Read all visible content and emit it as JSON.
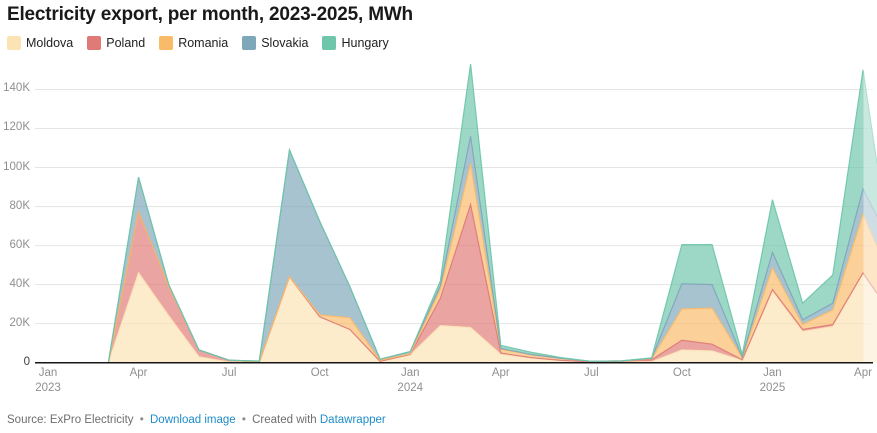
{
  "header": {
    "title": "Electricity export, per month, 2023-2025, MWh"
  },
  "footer": {
    "source_label": "Source:",
    "source": "ExPro Electricity",
    "separator": "•",
    "download_link": "Download image",
    "created_with": "Created with",
    "datawrapper_link": "Datawrapper"
  },
  "chart_data": {
    "type": "area",
    "stacked": true,
    "title": "Electricity export, per month, 2023-2025, MWh",
    "unit": "MWh",
    "values_unit": "thousand MWh",
    "grid": "horizontal",
    "legend_position": "top",
    "ylim": [
      0,
      155
    ],
    "x_months": [
      "2023-01",
      "2023-02",
      "2023-03",
      "2023-04",
      "2023-05",
      "2023-06",
      "2023-07",
      "2023-08",
      "2023-09",
      "2023-10",
      "2023-11",
      "2023-12",
      "2024-01",
      "2024-02",
      "2024-03",
      "2024-04",
      "2024-05",
      "2024-06",
      "2024-07",
      "2024-08",
      "2024-09",
      "2024-10",
      "2024-11",
      "2024-12",
      "2025-01",
      "2025-02",
      "2025-03",
      "2025-04",
      "2025-05 (clipped at chart edge, shown faded)"
    ],
    "series": [
      {
        "name": "Moldova",
        "color": "#FBE3B4",
        "values": [
          0,
          0,
          0,
          46,
          24,
          3,
          0.3,
          0.3,
          44,
          23.5,
          17,
          0.7,
          4,
          19,
          18,
          4.3,
          2.6,
          1.2,
          0.4,
          0.4,
          0.5,
          6.5,
          6,
          1.2,
          36.5,
          16,
          18.5,
          46,
          35.5
        ]
      },
      {
        "name": "Poland",
        "color": "#E07A76",
        "values": [
          0,
          0,
          0,
          31,
          15,
          3.5,
          1,
          0,
          0,
          0,
          0,
          0,
          0.2,
          14,
          63,
          0.6,
          0,
          0,
          0,
          0.3,
          1,
          5,
          3.5,
          0.3,
          1,
          1,
          1,
          0,
          0
        ]
      },
      {
        "name": "Romania",
        "color": "#F9BB68",
        "values": [
          0,
          0,
          0,
          0,
          0,
          0,
          0,
          0,
          0,
          1,
          6,
          0.6,
          0.3,
          4.5,
          21,
          2,
          1.6,
          1,
          0.3,
          0.2,
          0.5,
          16,
          18.5,
          1,
          11,
          2.5,
          7.5,
          30,
          24
        ]
      },
      {
        "name": "Slovakia",
        "color": "#7FA7BA",
        "values": [
          0,
          0,
          0,
          18,
          1,
          0,
          0,
          0.5,
          65,
          48,
          16,
          0.5,
          1.2,
          2,
          14,
          0.4,
          0,
          0,
          0,
          0,
          0.2,
          13,
          12,
          0.3,
          8,
          2.5,
          3.5,
          13,
          15.5
        ]
      },
      {
        "name": "Hungary",
        "color": "#6EC6AB",
        "values": [
          0,
          0,
          0,
          0,
          0,
          0,
          0,
          0,
          0,
          0,
          0,
          0,
          0,
          2.5,
          37,
          1.6,
          1.2,
          0.4,
          0,
          0,
          0.3,
          20,
          20.5,
          1.3,
          27,
          8.5,
          14.5,
          61,
          27
        ]
      }
    ],
    "y_ticks": [
      {
        "v": 0,
        "label": "0"
      },
      {
        "v": 20,
        "label": "20K"
      },
      {
        "v": 40,
        "label": "40K"
      },
      {
        "v": 60,
        "label": "60K"
      },
      {
        "v": 80,
        "label": "80K"
      },
      {
        "v": 100,
        "label": "100K"
      },
      {
        "v": 120,
        "label": "120K"
      },
      {
        "v": 140,
        "label": "140K"
      }
    ],
    "x_ticks": [
      {
        "m": 0,
        "label": "Jan",
        "year": "2023"
      },
      {
        "m": 3,
        "label": "Apr",
        "year": ""
      },
      {
        "m": 6,
        "label": "Jul",
        "year": ""
      },
      {
        "m": 9,
        "label": "Oct",
        "year": ""
      },
      {
        "m": 12,
        "label": "Jan",
        "year": "2024"
      },
      {
        "m": 15,
        "label": "Apr",
        "year": ""
      },
      {
        "m": 18,
        "label": "Jul",
        "year": ""
      },
      {
        "m": 21,
        "label": "Oct",
        "year": ""
      },
      {
        "m": 24,
        "label": "Jan",
        "year": "2025"
      },
      {
        "m": 27,
        "label": "Apr",
        "year": ""
      }
    ],
    "faded_region_from_month": "2025-04"
  }
}
